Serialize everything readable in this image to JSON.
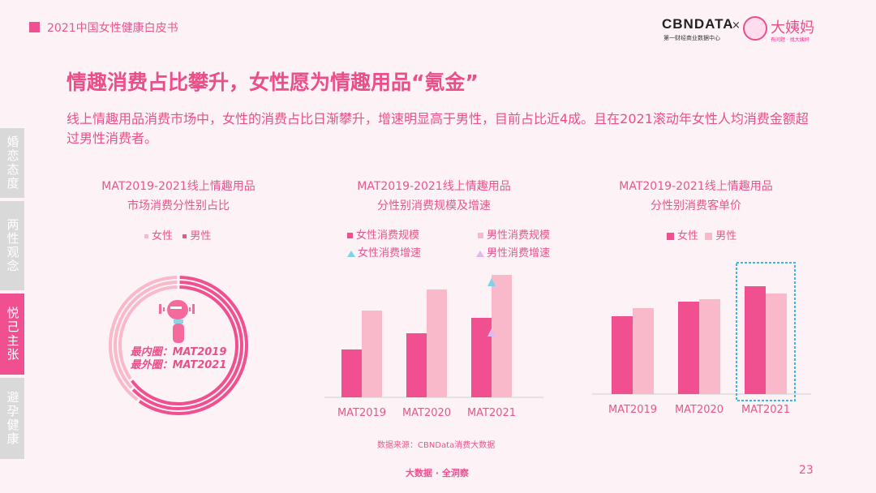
{
  "header": {
    "report_title": "2021中国女性健康白皮书"
  },
  "logo": {
    "cbn": "CBNDATA",
    "cbn_sub": "第一财经商业数据中心",
    "cross": "×",
    "partner": "大姨妈",
    "partner_sub": "有问题 · 找大姨妈"
  },
  "title": "情趣消费占比攀升，女性愿为情趣用品“氪金”",
  "description": "线上情趣用品消费市场中，女性的消费占比日渐攀升，增速明显高于男性，目前占比近4成。且在2021滚动年女性人均消费金额超过男性消费者。",
  "sidebar": {
    "items": [
      {
        "label": "婚恋态度",
        "active": false
      },
      {
        "label": "两性观念",
        "active": false
      },
      {
        "label": "悦己主张",
        "active": true
      },
      {
        "label": "避孕健康",
        "active": false
      }
    ]
  },
  "colors": {
    "female": "#f0508f",
    "male": "#f9b9cb",
    "female_growth": "#7fd3e8",
    "male_growth": "#e0b8ee",
    "highlight_box": "#3fb3e6"
  },
  "chart_data": [
    {
      "type": "pie",
      "title": [
        "MAT2019-2021线上情趣用品",
        "市场消费分性别占比"
      ],
      "legend": [
        "女性",
        "男性"
      ],
      "legend_placement": "top",
      "annotation": [
        "最内圈：MAT2019",
        "最外圈：MAT2021"
      ],
      "center_icon": "massager-icon",
      "rings": [
        {
          "period": "MAT2019",
          "female": 0.35,
          "male": 0.65
        },
        {
          "period": "MAT2020",
          "female": 0.37,
          "male": 0.63
        },
        {
          "period": "MAT2021",
          "female": 0.4,
          "male": 0.6
        }
      ]
    },
    {
      "type": "bar",
      "title": [
        "MAT2019-2021线上情趣用品",
        "分性别消费规模及增速"
      ],
      "categories": [
        "MAT2019",
        "MAT2020",
        "MAT2021"
      ],
      "legend_placement": "top",
      "series": [
        {
          "name": "女性消费规模",
          "values": [
            59,
            79,
            98
          ]
        },
        {
          "name": "男性消费规模",
          "values": [
            107,
            133,
            151
          ]
        }
      ],
      "growth_markers": [
        {
          "name": "女性消费增速",
          "category": "MAT2021",
          "value": 142
        },
        {
          "name": "男性消费增速",
          "category": "MAT2021",
          "value": 80
        }
      ],
      "ylim": [
        0,
        160
      ],
      "grid": false
    },
    {
      "type": "bar",
      "title": [
        "MAT2019-2021线上情趣用品",
        "分性别消费客单价"
      ],
      "categories": [
        "MAT2019",
        "MAT2020",
        "MAT2021"
      ],
      "legend_placement": "top",
      "series": [
        {
          "name": "女性",
          "values": [
            96,
            114,
            133
          ]
        },
        {
          "name": "男性",
          "values": [
            106,
            117,
            124
          ]
        }
      ],
      "highlight": "MAT2021",
      "ylim": [
        0,
        160
      ],
      "grid": false
    }
  ],
  "source": "数据来源：CBNData消费大数据",
  "footer": "大数据 · 全洞察",
  "page_number": "23"
}
